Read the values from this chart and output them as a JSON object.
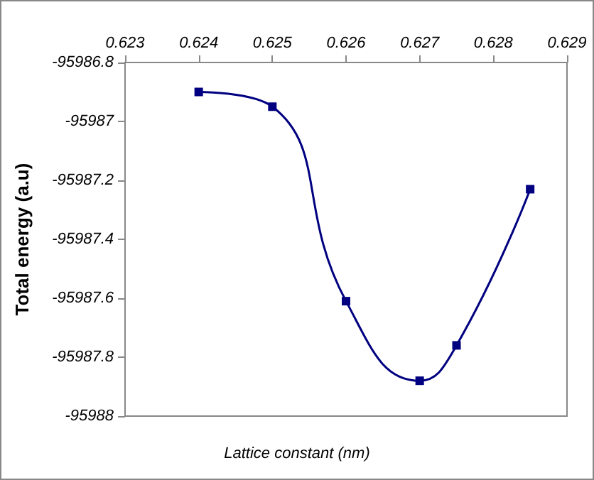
{
  "chart_data": {
    "type": "line",
    "xlabel": "Lattice constant (nm)",
    "ylabel": "Total energy (a.u)",
    "x": [
      0.624,
      0.625,
      0.626,
      0.627,
      0.6275,
      0.6285
    ],
    "series": [
      {
        "color": "#000080",
        "values": [
          -95986.9,
          -95986.95,
          -95987.61,
          -95987.88,
          -95987.76,
          -95987.23
        ]
      }
    ],
    "xlim": [
      0.623,
      0.629
    ],
    "xticks": [
      0.623,
      0.624,
      0.625,
      0.626,
      0.627,
      0.628,
      0.629
    ],
    "ylim": [
      -95988,
      -95986.8
    ],
    "yticks": [
      -95988,
      -95987.8,
      -95987.6,
      -95987.4,
      -95987.2,
      -95987,
      -95986.8
    ],
    "marker": "square",
    "line_style": "solid",
    "grid": false
  }
}
